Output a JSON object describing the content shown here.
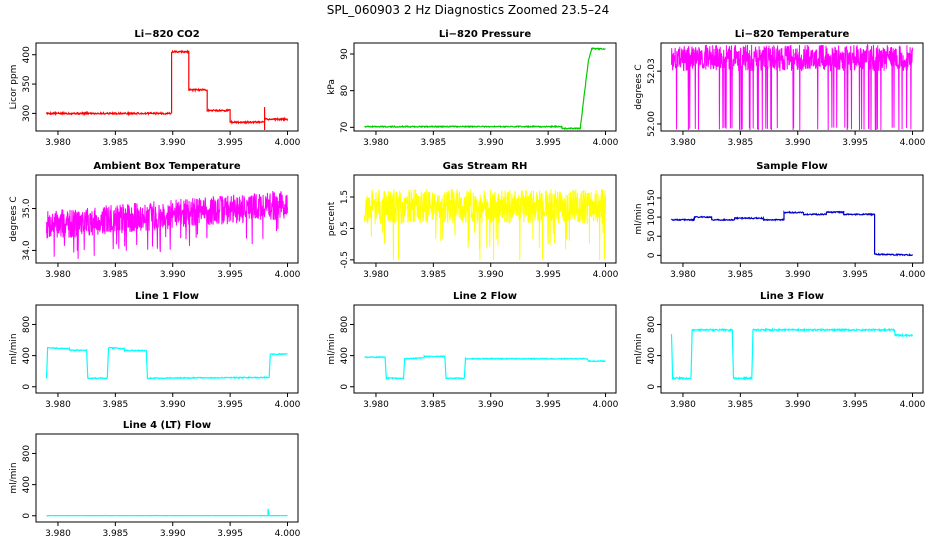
{
  "figure": {
    "title": "SPL_060903  2 Hz Diagnostics Zoomed 23.5–24"
  },
  "chart_data": [
    {
      "type": "line",
      "title": "Li−820 CO2",
      "ylabel": "Licor ppm",
      "color": "#ff0000",
      "xlim": [
        3.979,
        4.0
      ],
      "xticks": [
        "3.980",
        "3.985",
        "3.990",
        "3.995",
        "4.000"
      ],
      "ylim": [
        270,
        420
      ],
      "yticks": [
        "300",
        "350",
        "400"
      ],
      "series": [
        {
          "segments": [
            [
              [
                3.979,
                300
              ],
              [
                3.9899,
                300
              ],
              [
                3.9899,
                405
              ],
              [
                3.9914,
                405
              ],
              [
                3.9914,
                340
              ],
              [
                3.993,
                340
              ],
              [
                3.993,
                305
              ],
              [
                3.995,
                305
              ],
              [
                3.995,
                285
              ],
              [
                3.998,
                285
              ]
            ],
            [
              [
                3.998,
                268
              ],
              [
                3.998,
                310
              ]
            ],
            [
              [
                3.998,
                290
              ],
              [
                4.0,
                290
              ]
            ]
          ],
          "noise": 1.5
        }
      ]
    },
    {
      "type": "line",
      "title": "Li−820 Pressure",
      "ylabel": "kPa",
      "color": "#00cc00",
      "xlim": [
        3.979,
        4.0
      ],
      "xticks": [
        "3.980",
        "3.985",
        "3.990",
        "3.995",
        "4.000"
      ],
      "ylim": [
        69,
        93
      ],
      "yticks": [
        "70",
        "80",
        "90"
      ],
      "series": [
        {
          "segments": [
            [
              [
                3.979,
                70.2
              ],
              [
                3.9962,
                70.2
              ],
              [
                3.9962,
                69.7
              ],
              [
                3.9978,
                69.7
              ],
              [
                3.9985,
                88
              ],
              [
                3.9988,
                91.5
              ],
              [
                4.0,
                91.3
              ]
            ]
          ],
          "noise": 0.15
        }
      ]
    },
    {
      "type": "noise",
      "title": "Li−820 Temperature",
      "ylabel": "degrees C",
      "color": "#ff00ff",
      "xlim": [
        3.979,
        4.0
      ],
      "xticks": [
        "3.980",
        "3.985",
        "3.990",
        "3.995",
        "4.000"
      ],
      "ylim": [
        51.996,
        52.046
      ],
      "yticks": [
        "52.00",
        "52.03"
      ],
      "band": [
        52.03,
        52.045
      ],
      "spikes_to": 51.996,
      "seed": 3
    },
    {
      "type": "noise",
      "title": "Ambient Box Temperature",
      "ylabel": "degrees C",
      "color": "#ff00ff",
      "xlim": [
        3.979,
        4.0
      ],
      "xticks": [
        "3.980",
        "3.985",
        "3.990",
        "3.995",
        "4.000"
      ],
      "ylim": [
        33.7,
        35.8
      ],
      "yticks": [
        "34.0",
        "35.0"
      ],
      "trend": [
        34.6,
        35.1
      ],
      "amp": 0.35,
      "seed": 7
    },
    {
      "type": "noise",
      "title": "Gas Stream RH",
      "ylabel": "percent",
      "color": "#ffff00",
      "xlim": [
        3.979,
        4.0
      ],
      "xticks": [
        "3.980",
        "3.985",
        "3.990",
        "3.995",
        "4.000"
      ],
      "ylim": [
        -0.6,
        2.2
      ],
      "yticks": [
        "-0.5",
        "0.5",
        "1.5"
      ],
      "trend": [
        1.2,
        1.2
      ],
      "amp": 0.55,
      "spike_low": -0.5,
      "seed": 11
    },
    {
      "type": "line",
      "title": "Sample Flow",
      "ylabel": "ml/min",
      "color": "#0000cc",
      "xlim": [
        3.979,
        4.0
      ],
      "xticks": [
        "3.980",
        "3.985",
        "3.990",
        "3.995",
        "4.000"
      ],
      "ylim": [
        -20,
        210
      ],
      "yticks": [
        "0",
        "50",
        "100",
        "150"
      ],
      "series": [
        {
          "segments": [
            [
              [
                3.979,
                93
              ],
              [
                3.981,
                93
              ],
              [
                3.981,
                100
              ],
              [
                3.9825,
                100
              ],
              [
                3.9825,
                93
              ],
              [
                3.9845,
                93
              ],
              [
                3.9845,
                97
              ],
              [
                3.987,
                97
              ],
              [
                3.987,
                93
              ],
              [
                3.9888,
                93
              ],
              [
                3.9888,
                112
              ],
              [
                3.9905,
                112
              ],
              [
                3.9905,
                107
              ],
              [
                3.9925,
                107
              ],
              [
                3.9925,
                113
              ],
              [
                3.994,
                113
              ],
              [
                3.994,
                107
              ],
              [
                3.9967,
                107
              ],
              [
                3.9967,
                3
              ],
              [
                4.0,
                1
              ]
            ]
          ],
          "noise": 1.5
        }
      ]
    },
    {
      "type": "line",
      "title": "Line 1 Flow",
      "ylabel": "ml/min",
      "color": "#00ffff",
      "xlim": [
        3.979,
        4.0
      ],
      "xticks": [
        "3.980",
        "3.985",
        "3.990",
        "3.995",
        "4.000"
      ],
      "ylim": [
        -80,
        1050
      ],
      "yticks": [
        "0",
        "400",
        "800"
      ],
      "series": [
        {
          "segments": [
            [
              [
                3.979,
                110
              ],
              [
                3.9791,
                500
              ],
              [
                3.981,
                490
              ],
              [
                3.981,
                470
              ],
              [
                3.9825,
                470
              ],
              [
                3.9826,
                110
              ],
              [
                3.9843,
                110
              ],
              [
                3.9844,
                500
              ],
              [
                3.9858,
                490
              ],
              [
                3.9858,
                465
              ],
              [
                3.9877,
                465
              ],
              [
                3.9878,
                110
              ],
              [
                3.9984,
                120
              ],
              [
                3.9985,
                420
              ],
              [
                4.0,
                420
              ]
            ]
          ],
          "noise": 6
        }
      ]
    },
    {
      "type": "line",
      "title": "Line 2 Flow",
      "ylabel": "ml/min",
      "color": "#00ffff",
      "xlim": [
        3.979,
        4.0
      ],
      "xticks": [
        "3.980",
        "3.985",
        "3.990",
        "3.995",
        "4.000"
      ],
      "ylim": [
        -80,
        1050
      ],
      "yticks": [
        "0",
        "400",
        "800"
      ],
      "series": [
        {
          "segments": [
            [
              [
                3.979,
                380
              ],
              [
                3.9808,
                380
              ],
              [
                3.9809,
                110
              ],
              [
                3.9824,
                110
              ],
              [
                3.9825,
                360
              ],
              [
                3.9842,
                370
              ],
              [
                3.9842,
                390
              ],
              [
                3.986,
                390
              ],
              [
                3.9861,
                110
              ],
              [
                3.9877,
                110
              ],
              [
                3.9878,
                360
              ],
              [
                3.9984,
                360
              ],
              [
                3.9985,
                330
              ],
              [
                4.0,
                330
              ]
            ]
          ],
          "noise": 6
        }
      ]
    },
    {
      "type": "line",
      "title": "Line 3 Flow",
      "ylabel": "ml/min",
      "color": "#00ffff",
      "xlim": [
        3.979,
        4.0
      ],
      "xticks": [
        "3.980",
        "3.985",
        "3.990",
        "3.995",
        "4.000"
      ],
      "ylim": [
        -80,
        1050
      ],
      "yticks": [
        "0",
        "400",
        "800"
      ],
      "series": [
        {
          "segments": [
            [
              [
                3.979,
                680
              ],
              [
                3.9791,
                110
              ],
              [
                3.9807,
                110
              ],
              [
                3.9808,
                730
              ],
              [
                3.9843,
                730
              ],
              [
                3.9844,
                110
              ],
              [
                3.986,
                110
              ],
              [
                3.9861,
                730
              ],
              [
                3.9984,
                730
              ],
              [
                3.9985,
                660
              ],
              [
                4.0,
                660
              ]
            ]
          ],
          "noise": 10
        }
      ]
    },
    {
      "type": "line",
      "title": "Line 4 (LT) Flow",
      "ylabel": "ml/min",
      "color": "#00ffff",
      "xlim": [
        3.979,
        4.0
      ],
      "xticks": [
        "3.980",
        "3.985",
        "3.990",
        "3.995",
        "4.000"
      ],
      "ylim": [
        -80,
        1050
      ],
      "yticks": [
        "0",
        "400",
        "800"
      ],
      "series": [
        {
          "segments": [
            [
              [
                3.979,
                2
              ],
              [
                3.9983,
                2
              ],
              [
                3.9983,
                90
              ],
              [
                3.9984,
                2
              ],
              [
                4.0,
                2
              ]
            ]
          ],
          "noise": 1
        }
      ]
    }
  ]
}
